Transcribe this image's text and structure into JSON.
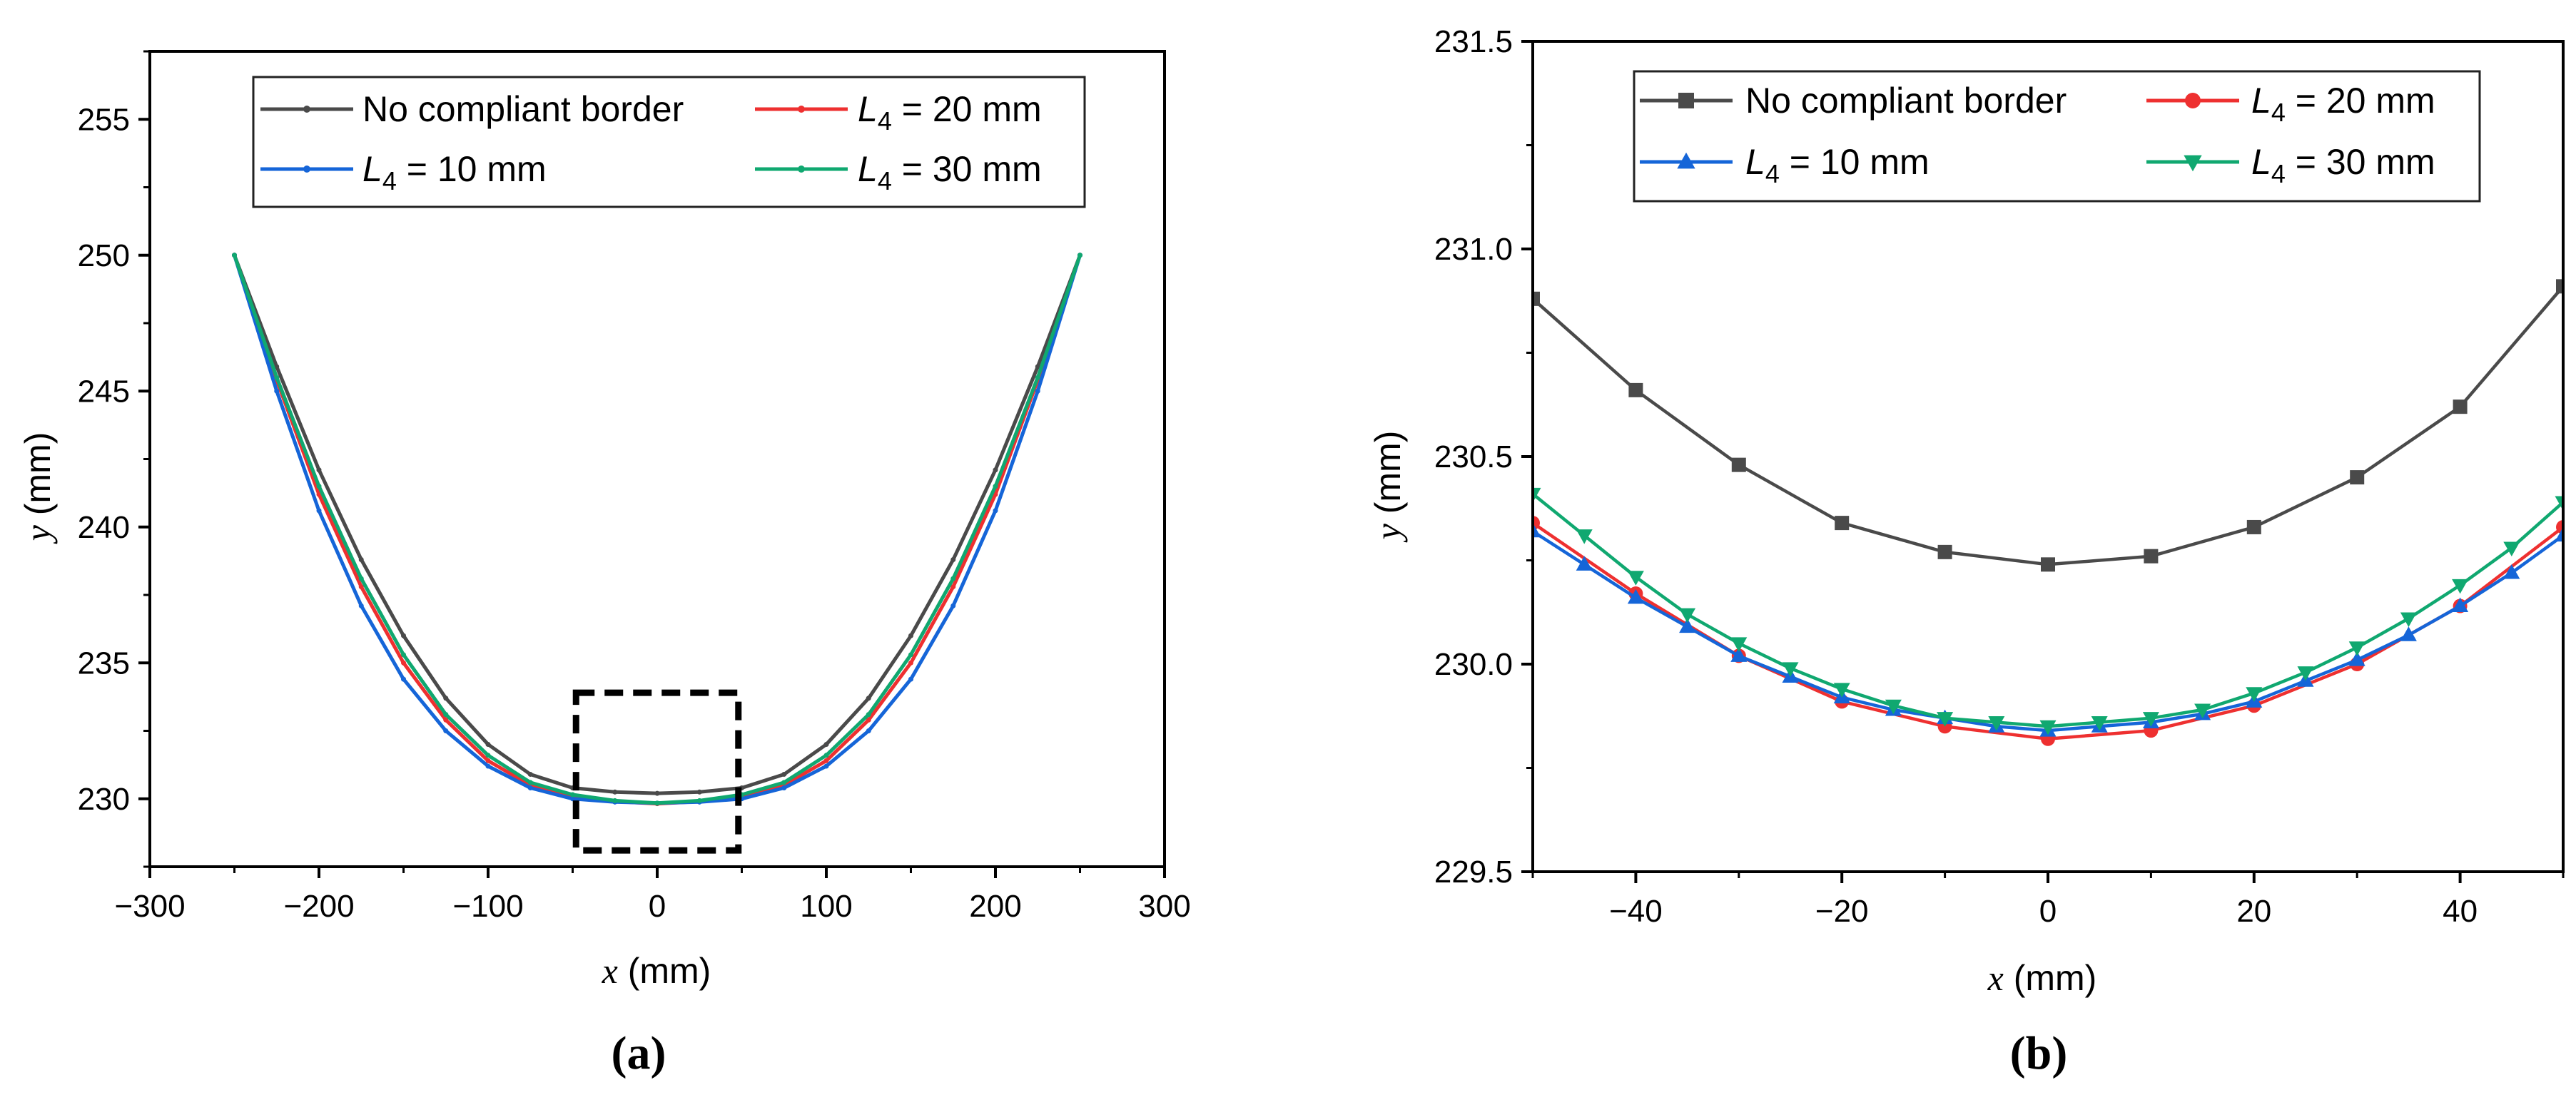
{
  "colors": {
    "no_border": "#4a4a4a",
    "l20": "#ee3030",
    "l10": "#1565d8",
    "l30": "#10a870",
    "axis": "#000000",
    "zoom_box": "#000000"
  },
  "chart_data": [
    {
      "panel_label": "(a)",
      "type": "line",
      "xlabel_var": "x",
      "xlabel_unit": " (mm)",
      "ylabel_var": "y",
      "ylabel_unit": " (mm)",
      "xlim": [
        -300,
        300
      ],
      "ylim": [
        227.5,
        257.5
      ],
      "xticks": [
        -300,
        -200,
        -100,
        0,
        100,
        200,
        300
      ],
      "yticks": [
        230,
        235,
        240,
        245,
        250,
        255
      ],
      "xtick_labels": [
        "−300",
        "−200",
        "−100",
        "0",
        "100",
        "200",
        "300"
      ],
      "ytick_labels": [
        "230",
        "235",
        "240",
        "245",
        "250",
        "255"
      ],
      "legend": [
        {
          "key": "no_border",
          "label": "No compliant border"
        },
        {
          "key": "l20",
          "label": "L4 = 20 mm"
        },
        {
          "key": "l10",
          "label": "L4 = 10 mm"
        },
        {
          "key": "l30",
          "label": "L4 = 30 mm"
        }
      ],
      "legend_entries": {
        "no_border": "No compliant border",
        "l20_var": "L",
        "l20_sub": "4",
        "l20_rest": " = 20 mm",
        "l10_var": "L",
        "l10_sub": "4",
        "l10_rest": " = 10 mm",
        "l30_var": "L",
        "l30_sub": "4",
        "l30_rest": " = 30 mm"
      },
      "zoom_box": {
        "x": [
          -48,
          48
        ],
        "y": [
          228.1,
          233.9
        ]
      },
      "series": [
        {
          "name": "No compliant border",
          "key": "no_border",
          "marker": "dot",
          "x": [
            -250,
            -225,
            -200,
            -175,
            -150,
            -125,
            -100,
            -75,
            -50,
            -25,
            0,
            25,
            50,
            75,
            100,
            125,
            150,
            175,
            200,
            225,
            250
          ],
          "y": [
            250,
            245.9,
            242.1,
            238.8,
            236.0,
            233.7,
            232.0,
            230.9,
            230.4,
            230.25,
            230.2,
            230.25,
            230.4,
            230.9,
            232.0,
            233.7,
            236.0,
            238.8,
            242.1,
            245.9,
            250
          ]
        },
        {
          "name": "L4 = 20 mm",
          "key": "l20",
          "marker": "dot",
          "x": [
            -250,
            -225,
            -200,
            -175,
            -150,
            -125,
            -100,
            -75,
            -50,
            -25,
            0,
            25,
            50,
            75,
            100,
            125,
            150,
            175,
            200,
            225,
            250
          ],
          "y": [
            250,
            245.4,
            241.2,
            237.8,
            235.0,
            232.9,
            231.4,
            230.5,
            230.1,
            229.9,
            229.82,
            229.9,
            230.1,
            230.5,
            231.4,
            232.9,
            235.0,
            237.8,
            241.2,
            245.4,
            250
          ]
        },
        {
          "name": "L4 = 10 mm",
          "key": "l10",
          "marker": "dot",
          "x": [
            -250,
            -225,
            -200,
            -175,
            -150,
            -125,
            -100,
            -75,
            -50,
            -25,
            0,
            25,
            50,
            75,
            100,
            125,
            150,
            175,
            200,
            225,
            250
          ],
          "y": [
            250,
            245.0,
            240.6,
            237.1,
            234.4,
            232.5,
            231.2,
            230.4,
            230.0,
            229.88,
            229.84,
            229.88,
            230.0,
            230.4,
            231.2,
            232.5,
            234.4,
            237.1,
            240.6,
            245.0,
            250
          ]
        },
        {
          "name": "L4 = 30 mm",
          "key": "l30",
          "marker": "dot",
          "x": [
            -250,
            -225,
            -200,
            -175,
            -150,
            -125,
            -100,
            -75,
            -50,
            -25,
            0,
            25,
            50,
            75,
            100,
            125,
            150,
            175,
            200,
            225,
            250
          ],
          "y": [
            250,
            245.5,
            241.5,
            238.1,
            235.3,
            233.1,
            231.6,
            230.6,
            230.15,
            229.93,
            229.84,
            229.93,
            230.15,
            230.6,
            231.6,
            233.1,
            235.3,
            238.1,
            241.5,
            245.5,
            250
          ]
        }
      ]
    },
    {
      "panel_label": "(b)",
      "type": "line",
      "xlabel_var": "x",
      "xlabel_unit": " (mm)",
      "ylabel_var": "y",
      "ylabel_unit": " (mm)",
      "xlim": [
        -50,
        50
      ],
      "ylim": [
        229.5,
        231.5
      ],
      "xticks": [
        -40,
        -20,
        0,
        20,
        40
      ],
      "yticks": [
        229.5,
        230.0,
        230.5,
        231.0,
        231.5
      ],
      "xtick_labels": [
        "−40",
        "−20",
        "0",
        "20",
        "40"
      ],
      "ytick_labels": [
        "229.5",
        "230.0",
        "230.5",
        "231.0",
        "231.5"
      ],
      "legend": [
        {
          "key": "no_border",
          "label": "No compliant border"
        },
        {
          "key": "l20",
          "label": "L4 = 20 mm"
        },
        {
          "key": "l10",
          "label": "L4 = 10 mm"
        },
        {
          "key": "l30",
          "label": "L4 = 30 mm"
        }
      ],
      "legend_entries": {
        "no_border": "No compliant border",
        "l20_var": "L",
        "l20_sub": "4",
        "l20_rest": " = 20 mm",
        "l10_var": "L",
        "l10_sub": "4",
        "l10_rest": " = 10 mm",
        "l30_var": "L",
        "l30_sub": "4",
        "l30_rest": " = 30 mm"
      },
      "series": [
        {
          "name": "No compliant border",
          "key": "no_border",
          "marker": "square",
          "x": [
            -50,
            -40,
            -30,
            -20,
            -10,
            0,
            10,
            20,
            30,
            40,
            50
          ],
          "y": [
            230.88,
            230.66,
            230.48,
            230.34,
            230.27,
            230.24,
            230.26,
            230.33,
            230.45,
            230.62,
            230.91
          ]
        },
        {
          "name": "L4 = 20 mm",
          "key": "l20",
          "marker": "circle",
          "x": [
            -50,
            -40,
            -30,
            -20,
            -10,
            0,
            10,
            20,
            30,
            40,
            50
          ],
          "y": [
            230.34,
            230.17,
            230.02,
            229.91,
            229.85,
            229.82,
            229.84,
            229.9,
            230.0,
            230.14,
            230.33
          ]
        },
        {
          "name": "L4 = 10 mm",
          "key": "l10",
          "marker": "triangle-up",
          "x": [
            -50,
            -45,
            -40,
            -35,
            -30,
            -25,
            -20,
            -15,
            -10,
            -5,
            0,
            5,
            10,
            15,
            20,
            25,
            30,
            35,
            40,
            45,
            50
          ],
          "y": [
            230.32,
            230.24,
            230.16,
            230.09,
            230.02,
            229.97,
            229.92,
            229.89,
            229.87,
            229.85,
            229.84,
            229.85,
            229.86,
            229.88,
            229.91,
            229.96,
            230.01,
            230.07,
            230.14,
            230.22,
            230.31
          ]
        },
        {
          "name": "L4 = 30 mm",
          "key": "l30",
          "marker": "triangle-down",
          "x": [
            -50,
            -45,
            -40,
            -35,
            -30,
            -25,
            -20,
            -15,
            -10,
            -5,
            0,
            5,
            10,
            15,
            20,
            25,
            30,
            35,
            40,
            45,
            50
          ],
          "y": [
            230.41,
            230.31,
            230.21,
            230.12,
            230.05,
            229.99,
            229.94,
            229.9,
            229.87,
            229.86,
            229.85,
            229.86,
            229.87,
            229.89,
            229.93,
            229.98,
            230.04,
            230.11,
            230.19,
            230.28,
            230.39
          ]
        }
      ]
    }
  ]
}
